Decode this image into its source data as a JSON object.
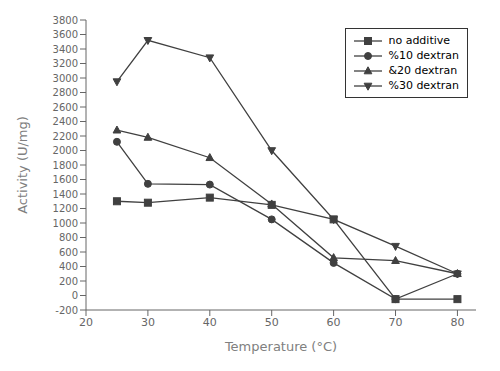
{
  "chart_data": {
    "type": "line",
    "xlabel": "Temperature (°C)",
    "ylabel": "Activity (U/mg)",
    "x": [
      25,
      30,
      40,
      50,
      60,
      70,
      80
    ],
    "series": [
      {
        "name": "no additive",
        "color": "#404040",
        "marker": "square",
        "values": [
          1300,
          1280,
          1350,
          1250,
          1050,
          -50,
          -50
        ]
      },
      {
        "name": "%10 dextran",
        "color": "#404040",
        "marker": "circle",
        "values": [
          2120,
          1540,
          1530,
          1050,
          450,
          -50,
          300
        ]
      },
      {
        "name": "&20 dextran",
        "color": "#404040",
        "marker": "triangle-up",
        "values": [
          2280,
          2180,
          1900,
          1260,
          520,
          480,
          300
        ]
      },
      {
        "name": "%30 dextran",
        "color": "#404040",
        "marker": "triangle-down",
        "values": [
          2950,
          3520,
          3280,
          2000,
          1050,
          680,
          300
        ]
      }
    ],
    "xlim": [
      20,
      83
    ],
    "ylim": [
      -200,
      3800
    ],
    "xticks": [
      20,
      30,
      40,
      50,
      60,
      70,
      80
    ],
    "yticks": [
      -200,
      0,
      200,
      400,
      600,
      800,
      1000,
      1200,
      1400,
      1600,
      1800,
      2000,
      2200,
      2400,
      2600,
      2800,
      3000,
      3200,
      3400,
      3600,
      3800
    ],
    "legend": "upper right",
    "grid": false
  }
}
